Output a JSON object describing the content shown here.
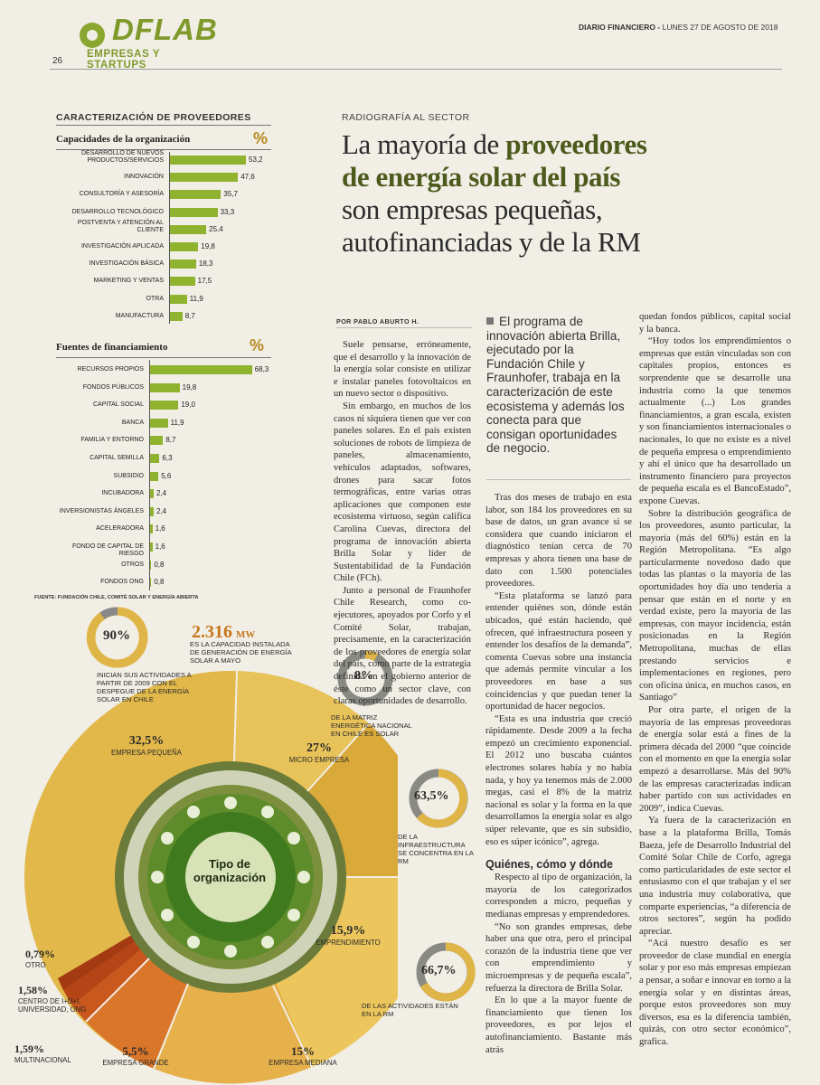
{
  "header": {
    "logo_title": "DFLAB",
    "logo_subtitle": "EMPRESAS Y STARTUPS",
    "page_number": "26",
    "newspaper": "DIARIO FINANCIERO",
    "separator": "-",
    "date": "LUNES 27 DE AGOSTO DE 2018"
  },
  "chart_data": [
    {
      "type": "bar",
      "section_title": "CARACTERIZACIÓN DE PROVEEDORES",
      "title": "Capacidades de la organización",
      "unit": "%",
      "categories": [
        "DESARROLLO DE NUEVOS PRODUCTOS/SERVICIOS",
        "INNOVACIÓN",
        "CONSULTORÍA Y ASESORÍA",
        "DESARROLLO TECNOLÓGICO",
        "POSTVENTA Y ATENCIÓN AL CLIENTE",
        "INVESTIGACIÓN APLICADA",
        "INVESTIGACIÓN BÁSICA",
        "MARKETING Y VENTAS",
        "OTRA",
        "MANUFACTURA"
      ],
      "values": [
        53.2,
        47.6,
        35.7,
        33.3,
        25.4,
        19.8,
        18.3,
        17.5,
        11.9,
        8.7
      ],
      "value_labels": [
        "53,2",
        "47,6",
        "35,7",
        "33,3",
        "25,4",
        "19,8",
        "18,3",
        "17,5",
        "11,9",
        "8,7"
      ],
      "bar_color": "#8fb32f"
    },
    {
      "type": "bar",
      "title": "Fuentes de financiamiento",
      "unit": "%",
      "categories": [
        "RECURSOS PROPIOS",
        "FONDOS PÚBLICOS",
        "CAPITAL SOCIAL",
        "BANCA",
        "FAMILIA Y ENTORNO",
        "CAPITAL SEMILLA",
        "SUBSIDIO",
        "INCUBADORA",
        "INVERSIONISTAS ÁNGELES",
        "ACELERADORA",
        "FONDO DE CAPITAL DE RIESGO",
        "OTROS",
        "FONDOS ONG"
      ],
      "values": [
        68.3,
        19.8,
        19.0,
        11.9,
        8.7,
        6.3,
        5.6,
        2.4,
        2.4,
        1.6,
        1.6,
        0.8,
        0.8
      ],
      "value_labels": [
        "68,3",
        "19,8",
        "19,0",
        "11,9",
        "8,7",
        "6,3",
        "5,6",
        "2,4",
        "2,4",
        "1,6",
        "1,6",
        "0,8",
        "0,8"
      ],
      "bar_color": "#8fb32f",
      "source": "FUENTE: FUNDACIÓN CHILE, COMITÉ SOLAR Y ENERGÍA ABIERTA"
    },
    {
      "type": "pie",
      "title": "Tipo de organización",
      "categories": [
        "EMPRESA PEQUEÑA",
        "MICRO EMPRESA",
        "EMPRENDIMIENTO",
        "EMPRESA MEDIANA",
        "EMPRESA GRANDE",
        "MULTINACIONAL",
        "CENTRO DE I+D+I, UNIVERSIDAD, ONG",
        "OTRO"
      ],
      "values": [
        32.5,
        27,
        15.9,
        15,
        5.5,
        1.59,
        1.58,
        0.79
      ],
      "value_labels": [
        "32,5%",
        "27%",
        "15,9%",
        "15%",
        "5,5%",
        "1,59%",
        "1,58%",
        "0,79%"
      ]
    }
  ],
  "infographic": {
    "stat_90": {
      "value": "90%",
      "caption": "INICIAN SUS ACTIVIDADES A PARTIR DE 2009 CON EL DESPEGUE DE LA ENERGÍA SOLAR EN CHILE"
    },
    "capacity": {
      "value": "2.316",
      "unit": "MW",
      "caption": "ES LA CAPACIDAD INSTALADA DE GENERACIÓN DE ENERGÍA SOLAR A MAYO"
    },
    "stat_8": {
      "value": "8%",
      "caption": "DE LA MATRIZ ENERGÉTICA NACIONAL EN CHILE ES SOLAR"
    },
    "stat_63_5": {
      "value": "63,5%",
      "caption": "DE LA INFRAESTRUCTURA SE CONCENTRA EN LA RM"
    },
    "stat_66_7": {
      "value": "66,7%",
      "caption": "DE LAS ACTIVIDADES ESTÁN EN LA RM"
    },
    "donut": {
      "center": "Tipo de organización"
    }
  },
  "article": {
    "kicker": "RADIOGRAFÍA AL SECTOR",
    "headline": {
      "line1_plain": "La mayoría de ",
      "line1_bold": "proveedores",
      "line2": "de energía solar del país",
      "line3": "son empresas pequeñas,",
      "line4": "autofinanciadas y de la RM"
    },
    "byline": "POR PABLO ABURTO H.",
    "pull_quote": "El programa de innovación abierta Brilla, ejecutado por la Fundación Chile y Fraunhofer, trabaja en la caracterización de este ecosistema y además los conecta para que consigan oportunidades de negocio.",
    "col1": [
      "Suele pensarse, erróneamente, que el desarrollo y la innovación de la energía solar consiste en utilizar e instalar paneles fotovoltaicos en un nuevo sector o dispositivo.",
      "Sin embargo, en muchos de los casos ni siquiera tienen que ver con paneles solares. En el país existen soluciones de robots de limpieza de paneles, almacenamiento, vehículos adaptados, softwares, drones para sacar fotos termográficas, entre varias otras aplicaciones que componen este ecosistema virtuoso, según califica Carolina Cuevas, directora del programa de innovación abierta Brilla Solar y líder de Sustentabilidad de la Fundación Chile (FCh).",
      "Junto a personal de Fraunhofer Chile Research, como co-ejecutores, apoyados por Corfo y el Comité Solar, trabajan, precisamente, en la caracterización de los proveedores de energía solar del país, como parte de la estrategia definida en el gobierno anterior de éste como un sector clave, con claras oportunidades de desarrollo."
    ],
    "col2": [
      "Tras dos meses de trabajo en esta labor, son 184 los proveedores en su base de datos, un gran avance si se considera que cuando iniciaron el diagnóstico tenían cerca de 70 empresas y ahora tienen una base de dato con 1.500 potenciales proveedores.",
      "“Esta plataforma se lanzó para entender quiénes son, dónde están ubicados, qué están haciendo, qué ofrecen, qué infraestructura poseen y entender los desafíos de la demanda”, comenta Cuevas sobre una instancia que además permite vincular a los proveedores en base a sus coincidencias y que puedan tener la oportunidad de hacer negocios.",
      "“Esta es una industria que creció rápidamente. Desde 2009 a la fecha empezó un crecimiento exponencial. El 2012 uno buscaba cuántos electrones solares había y no había nada, y hoy ya tenemos más de 2.000 megas, casi el 8% de la matriz nacional es solar y la forma en la que desarrollamos la energía solar es algo súper relevante, que es sin subsidio, eso es súper icónico”, agrega.",
      "Respecto al tipo de organización, la mayoría de los categorizados corresponden a micro, pequeñas y medianas empresas y emprendedores.",
      "“No son grandes empresas, debe haber una que otra, pero el principal corazón de la industria tiene que ver con emprendimiento y microempresas y de pequeña escala”, refuerza la directora de Brilla Solar.",
      "En lo que a la mayor fuente de financiamiento que tienen los proveedores, es por lejos el autofinanciamiento. Bastante más atrás"
    ],
    "subhead": "Quiénes, cómo y dónde",
    "col3": [
      "quedan fondos públicos, capital social y la banca.",
      "“Hoy todos los emprendimientos o empresas que están vinculadas son con capitales propios, entonces es sorprendente que se desarrolle una industria como la que tenemos actualmente (...) Los grandes financiamientos, a gran escala, existen y son financiamientos internacionales o nacionales, lo que no existe es a nivel de pequeña empresa o emprendimiento y ahí el único que ha desarrollado un instrumento financiero para proyectos de pequeña escala es el BancoEstado”, expone Cuevas.",
      "Sobre la distribución geográfica de los proveedores, asunto particular, la mayoría (más del 60%) están en la Región Metropolitana. “Es algo particularmente novedoso dado que todas las plantas o la mayoría de las oportunidades hoy día uno tendería a pensar que están en el norte y en verdad existe, pero la mayoría de las empresas, con mayor incidencia, están posicionadas en la Región Metropolitana, muchas de ellas prestando servicios e implementaciones en regiones, pero con oficina única, en muchos casos, en Santiago”",
      "Por otra parte, el origen de la mayoría de las empresas proveedoras de energía solar está a fines de la primera década del 2000 “que coincide con el momento en que la energía solar empezó a desarrollarse. Más del 90% de las empresas caracterizadas indican haber partido con sus actividades en 2009”, indica Cuevas.",
      "Ya fuera de la caracterización en base a la plataforma Brilla, Tomás Baeza, jefe de Desarrollo Industrial del Comité Solar Chile de Corfo, agrega como particularidades de este sector el entusiasmo con el que trabajan y el ser una industria muy colaborativa, que comparte experiencias, “a diferencia de otros sectores”, según ha podido apreciar.",
      "“Acá nuestro desafío es ser proveedor de clase mundial en energía solar y por eso más empresas empiezan a pensar, a soñar e innovar en torno a la energía solar y en distintas áreas, porque estos proveedores son muy diversos, esa es la diferencia también, quizás, con otro sector económico”, grafica."
    ]
  }
}
